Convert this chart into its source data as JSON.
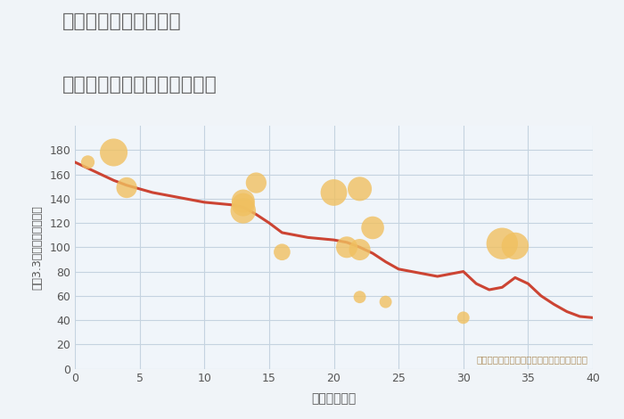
{
  "title_line1": "兵庫県西宮市中島町の",
  "title_line2": "築年数別中古マンション価格",
  "xlabel": "築年数（年）",
  "ylabel": "坪（3.3㎡）単価（万円）",
  "background_color": "#f0f4f8",
  "plot_bg_color": "#f0f5fa",
  "grid_color": "#c5d3e0",
  "title_color": "#666666",
  "annotation_text": "円の大きさは、取引のあった物件面積を示す",
  "annotation_color": "#b09060",
  "xlim": [
    0,
    40
  ],
  "ylim": [
    0,
    200
  ],
  "xticks": [
    0,
    5,
    10,
    15,
    20,
    25,
    30,
    35,
    40
  ],
  "yticks": [
    0,
    20,
    40,
    60,
    80,
    100,
    120,
    140,
    160,
    180
  ],
  "line_x": [
    0,
    1,
    2,
    3,
    4,
    5,
    6,
    7,
    8,
    9,
    10,
    11,
    12,
    13,
    14,
    15,
    16,
    17,
    18,
    19,
    20,
    21,
    22,
    23,
    24,
    25,
    26,
    27,
    28,
    29,
    30,
    31,
    32,
    33,
    34,
    35,
    36,
    37,
    38,
    39,
    40
  ],
  "line_y": [
    170,
    165,
    160,
    155,
    151,
    148,
    145,
    143,
    141,
    139,
    137,
    136,
    135,
    133,
    127,
    120,
    112,
    110,
    108,
    107,
    106,
    104,
    100,
    95,
    88,
    82,
    80,
    78,
    76,
    78,
    80,
    70,
    65,
    67,
    75,
    70,
    60,
    53,
    47,
    43,
    42
  ],
  "scatter_x": [
    1,
    3,
    4,
    13,
    13,
    13,
    14,
    16,
    20,
    21,
    22,
    22,
    23,
    22,
    24,
    30,
    33,
    34
  ],
  "scatter_y": [
    170,
    178,
    149,
    130,
    138,
    135,
    153,
    96,
    145,
    100,
    98,
    148,
    116,
    59,
    55,
    42,
    103,
    101
  ],
  "scatter_sizes": [
    120,
    500,
    280,
    420,
    350,
    350,
    280,
    180,
    460,
    300,
    300,
    380,
    340,
    100,
    100,
    100,
    650,
    480
  ],
  "scatter_color": "#f0c060",
  "scatter_alpha": 0.8,
  "line_color": "#cc4433",
  "line_width": 2.2
}
